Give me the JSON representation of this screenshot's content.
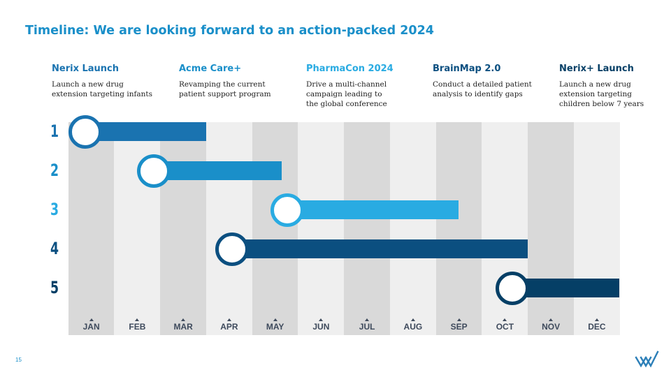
{
  "slide": {
    "title": "Timeline: We are looking forward to an action-packed 2024",
    "page_number": "15"
  },
  "milestones": [
    {
      "title": "Nerix Launch",
      "description": "Launch a new drug\nextension targeting infants",
      "color": "#1a73b0"
    },
    {
      "title": "Acme Care+",
      "description": "Revamping the current\npatient support program",
      "color": "#1a8fc9"
    },
    {
      "title": "PharmaCon 2024",
      "description": "Drive a multi-channel\ncampaign leading to\nthe global conference",
      "color": "#29abe2"
    },
    {
      "title": "BrainMap 2.0",
      "description": "Conduct a detailed patient\nanalysis to identify gaps",
      "color": "#0b4f80"
    },
    {
      "title": "Nerix+ Launch",
      "description": "Launch a new drug\nextension targeting\nchildren below 7 years",
      "color": "#053f66"
    }
  ],
  "months": [
    "JAN",
    "FEB",
    "MAR",
    "APR",
    "MAY",
    "JUN",
    "JUL",
    "AUG",
    "SEP",
    "OCT",
    "NOV",
    "DEC"
  ],
  "timeline_rows": [
    {
      "number": "1",
      "start_month": 0.0,
      "end_month": 3.0,
      "color": "#1a73b0"
    },
    {
      "number": "2",
      "start_month": 1.5,
      "end_month": 4.65,
      "color": "#1a8fc9"
    },
    {
      "number": "3",
      "start_month": 4.4,
      "end_month": 8.5,
      "color": "#29abe2"
    },
    {
      "number": "4",
      "start_month": 3.2,
      "end_month": 10.0,
      "color": "#0b4f80"
    },
    {
      "number": "5",
      "start_month": 9.3,
      "end_month": 12.0,
      "color": "#053f66"
    }
  ],
  "colors": {
    "title": "#1a8fc9",
    "month_dark": "#d9d9d9",
    "month_light": "#efefef",
    "month_label": "#3e4a5c",
    "logo": "#2c7fb8"
  }
}
